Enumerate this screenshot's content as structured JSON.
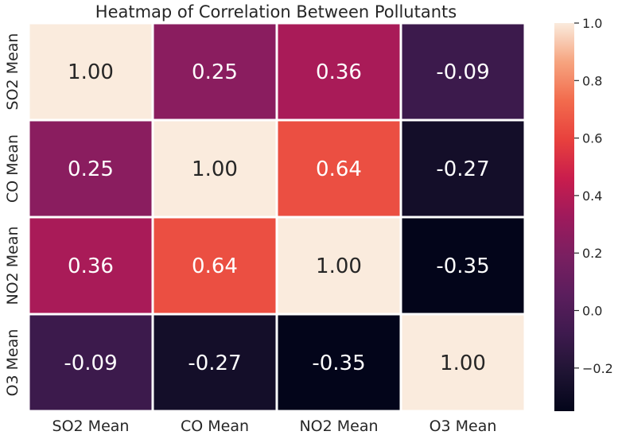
{
  "chart_data": {
    "type": "heatmap",
    "title": "Heatmap of Correlation Between Pollutants",
    "x_labels": [
      "SO2 Mean",
      "CO Mean",
      "NO2 Mean",
      "O3 Mean"
    ],
    "y_labels": [
      "SO2 Mean",
      "CO Mean",
      "NO2 Mean",
      "O3 Mean"
    ],
    "values": [
      [
        1.0,
        0.25,
        0.36,
        -0.09
      ],
      [
        0.25,
        1.0,
        0.64,
        -0.27
      ],
      [
        0.36,
        0.64,
        1.0,
        -0.35
      ],
      [
        -0.09,
        -0.27,
        -0.35,
        1.0
      ]
    ],
    "annotations": [
      [
        "1.00",
        "0.25",
        "0.36",
        "-0.09"
      ],
      [
        "0.25",
        "1.00",
        "0.64",
        "-0.27"
      ],
      [
        "0.36",
        "0.64",
        "1.00",
        "-0.35"
      ],
      [
        "-0.09",
        "-0.27",
        "-0.35",
        "1.00"
      ]
    ],
    "colorbar": {
      "range": [
        -0.35,
        1.0
      ],
      "ticks": [
        1.0,
        0.8,
        0.6,
        0.4,
        0.2,
        0.0,
        -0.2
      ],
      "tick_labels": [
        "1.0",
        "0.8",
        "0.6",
        "0.4",
        "0.2",
        "0.0",
        "−0.2"
      ],
      "colormap": "rocket"
    },
    "cell_border_color": "#ffffff",
    "dark_text_color": "#262626",
    "light_text_color": "#ffffff"
  }
}
